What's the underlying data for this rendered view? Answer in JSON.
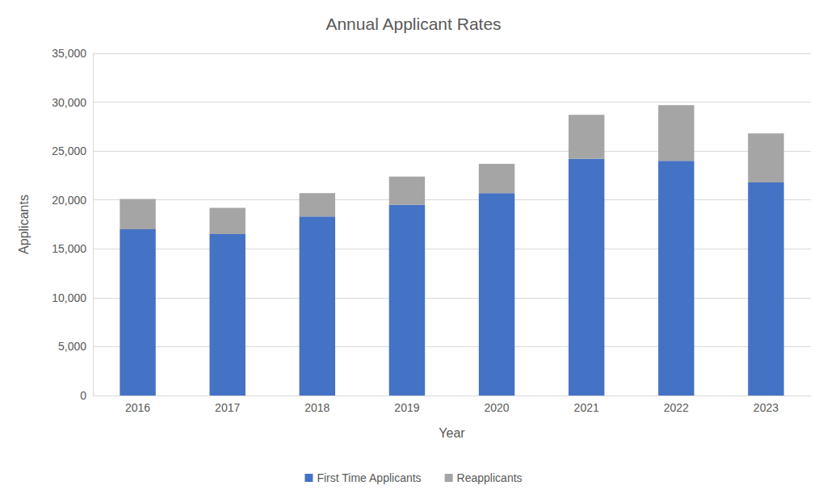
{
  "chart_data": {
    "type": "bar",
    "title": "Annual Applicant Rates",
    "x_label": "Year",
    "y_label": "Applicants",
    "categories": [
      "2016",
      "2017",
      "2018",
      "2019",
      "2020",
      "2021",
      "2022",
      "2023"
    ],
    "series": [
      {
        "name": "First Time Applicants",
        "color": "#4472c4",
        "values": [
          17000,
          16500,
          18300,
          19500,
          20700,
          24200,
          24000,
          21800
        ]
      },
      {
        "name": "Reapplicants",
        "color": "#a5a5a5",
        "values": [
          3100,
          2700,
          2400,
          2900,
          3000,
          4500,
          5700,
          5000
        ]
      }
    ],
    "stacked": true,
    "ylim": [
      0,
      35000
    ],
    "yticks": [
      0,
      {
        "value": 5000,
        "label": "5,000"
      },
      {
        "value": 10000,
        "label": "10,000"
      },
      {
        "value": 15000,
        "label": "15,000"
      },
      {
        "value": 20000,
        "label": "20,000"
      },
      {
        "value": 25000,
        "label": "25,000"
      },
      {
        "value": 30000,
        "label": "30,000"
      },
      {
        "value": 35000,
        "label": "35,000"
      }
    ],
    "grid": true,
    "legend": "bottom"
  }
}
